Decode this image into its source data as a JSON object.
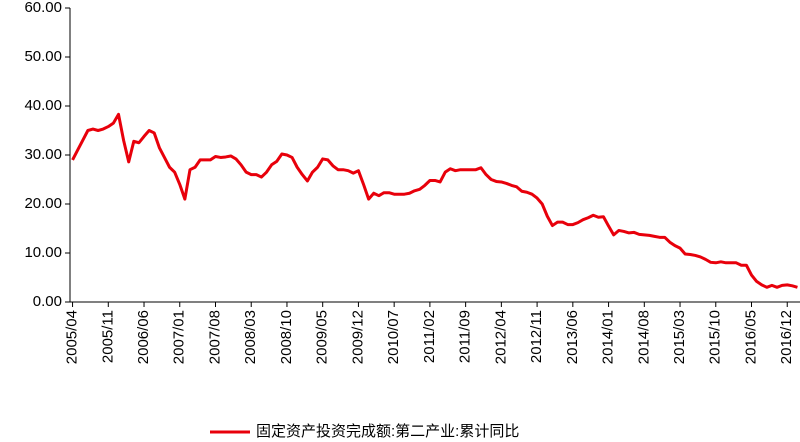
{
  "chart_data": {
    "type": "line",
    "categories": [
      "2005/04",
      null,
      null,
      null,
      null,
      null,
      null,
      "2005/11",
      null,
      null,
      null,
      null,
      null,
      null,
      "2006/06",
      null,
      null,
      null,
      null,
      null,
      null,
      "2007/01",
      null,
      null,
      null,
      null,
      null,
      null,
      "2007/08",
      null,
      null,
      null,
      null,
      null,
      null,
      "2008/03",
      null,
      null,
      null,
      null,
      null,
      null,
      "2008/10",
      null,
      null,
      null,
      null,
      null,
      null,
      "2009/05",
      null,
      null,
      null,
      null,
      null,
      null,
      "2009/12",
      null,
      null,
      null,
      null,
      null,
      null,
      "2010/07",
      null,
      null,
      null,
      null,
      null,
      null,
      "2011/02",
      null,
      null,
      null,
      null,
      null,
      null,
      "2011/09",
      null,
      null,
      null,
      null,
      null,
      null,
      "2012/04",
      null,
      null,
      null,
      null,
      null,
      null,
      "2012/11",
      null,
      null,
      null,
      null,
      null,
      null,
      "2013/06",
      null,
      null,
      null,
      null,
      null,
      null,
      "2014/01",
      null,
      null,
      null,
      null,
      null,
      null,
      "2014/08",
      null,
      null,
      null,
      null,
      null,
      null,
      "2015/03",
      null,
      null,
      null,
      null,
      null,
      null,
      "2015/10",
      null,
      null,
      null,
      null,
      null,
      null,
      "2016/05",
      null,
      null,
      null,
      null,
      null,
      null,
      "2016/12",
      null,
      null
    ],
    "series": [
      {
        "name": "固定资产投资完成额:第二产业:累计同比",
        "color": "#e8000b",
        "values": [
          29,
          31,
          33,
          35,
          35.3,
          35,
          35.3,
          35.8,
          36.5,
          38.3,
          33,
          28.6,
          32.8,
          32.5,
          33.8,
          35,
          34.5,
          31.5,
          29.5,
          27.5,
          26.5,
          24,
          21,
          27,
          27.5,
          29,
          29,
          29,
          29.7,
          29.5,
          29.6,
          29.8,
          29.2,
          28,
          26.5,
          26,
          26,
          25.5,
          26.5,
          28,
          28.7,
          30.2,
          30,
          29.5,
          27.5,
          26,
          24.7,
          26.5,
          27.5,
          29.2,
          29,
          27.8,
          27,
          27,
          26.8,
          26.3,
          26.8,
          24,
          21,
          22.2,
          21.7,
          22.3,
          22.3,
          22,
          22,
          22,
          22.2,
          22.7,
          23,
          23.8,
          24.8,
          24.8,
          24.5,
          26.5,
          27.2,
          26.8,
          27,
          27,
          27,
          27,
          27.4,
          26,
          25,
          24.6,
          24.5,
          24.2,
          23.8,
          23.5,
          22.6,
          22.4,
          22,
          21.2,
          20,
          17.5,
          15.6,
          16.3,
          16.3,
          15.8,
          15.8,
          16.2,
          16.8,
          17.2,
          17.7,
          17.3,
          17.4,
          15.5,
          13.7,
          14.6,
          14.4,
          14.1,
          14.2,
          13.8,
          13.7,
          13.6,
          13.4,
          13.2,
          13.2,
          12.2,
          11.5,
          11,
          9.8,
          9.7,
          9.5,
          9.2,
          8.7,
          8.1,
          8,
          8.2,
          8,
          8,
          8,
          7.5,
          7.5,
          5.5,
          4.2,
          3.5,
          3,
          3.4,
          3,
          3.4,
          3.5,
          3.3,
          3
        ]
      }
    ],
    "ylim": [
      0,
      60
    ],
    "yticks": [
      {
        "value": 0,
        "label": "0.00"
      },
      {
        "value": 10,
        "label": "10.00"
      },
      {
        "value": 20,
        "label": "20.00"
      },
      {
        "value": 30,
        "label": "30.00"
      },
      {
        "value": 40,
        "label": "40.00"
      },
      {
        "value": 50,
        "label": "50.00"
      },
      {
        "value": 60,
        "label": "60.00"
      }
    ],
    "legend": "bottom"
  }
}
